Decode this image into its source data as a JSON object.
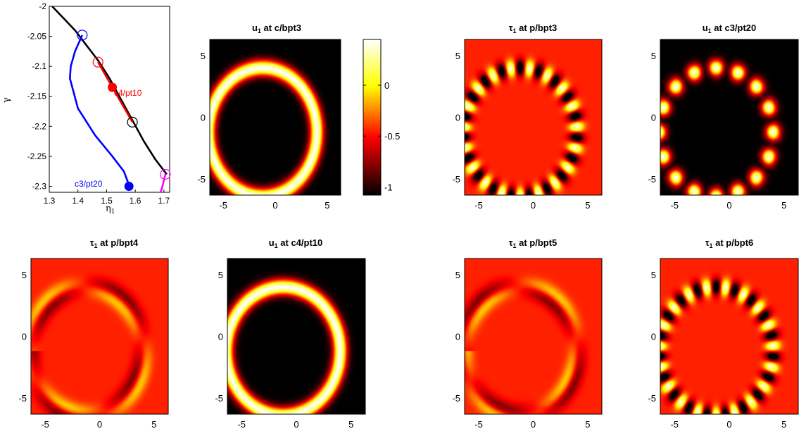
{
  "colors": {
    "hot_black": "#000000",
    "hot_red": "#ff0000",
    "hot_orange": "#ff7a00",
    "hot_yellow": "#ffff00",
    "hot_white": "#ffffff",
    "branch_main": "#000000",
    "branch_c3": "#0000ff",
    "branch_c4": "#ff0000",
    "branch_magenta": "#ff00ff"
  },
  "chart_data": [
    {
      "id": "diagram",
      "type": "line",
      "title": "",
      "xlabel": "η1",
      "xlabel_main": "η",
      "xlabel_sub": "1",
      "ylabel": "γ",
      "xlim": [
        1.3,
        1.72
      ],
      "ylim": [
        -2.31,
        -2.0
      ],
      "xticks": [
        "1.3",
        "1.4",
        "1.5",
        "1.6",
        "1.7"
      ],
      "xtick_values": [
        1.3,
        1.4,
        1.5,
        1.6,
        1.7
      ],
      "yticks": [
        "-2",
        "-2.05",
        "-2.1",
        "-2.15",
        "-2.2",
        "-2.25",
        "-2.3"
      ],
      "ytick_values": [
        -2.0,
        -2.05,
        -2.1,
        -2.15,
        -2.2,
        -2.25,
        -2.3
      ],
      "series": [
        {
          "color": "#000000",
          "x": [
            1.31,
            1.35,
            1.39,
            1.43,
            1.47,
            1.51,
            1.55,
            1.59,
            1.63,
            1.67,
            1.71
          ],
          "y": [
            -2.0,
            -2.02,
            -2.04,
            -2.065,
            -2.09,
            -2.12,
            -2.155,
            -2.19,
            -2.225,
            -2.255,
            -2.28
          ]
        },
        {
          "color": "#0000ff",
          "x": [
            1.415,
            1.39,
            1.375,
            1.372,
            1.4,
            1.46,
            1.52,
            1.56,
            1.58
          ],
          "y": [
            -2.048,
            -2.075,
            -2.1,
            -2.12,
            -2.17,
            -2.215,
            -2.25,
            -2.275,
            -2.3
          ]
        },
        {
          "color": "#ff0000",
          "x": [
            1.47,
            1.52,
            1.59
          ],
          "y": [
            -2.093,
            -2.135,
            -2.193
          ]
        },
        {
          "color": "#ff00ff",
          "x": [
            1.705,
            1.695,
            1.685
          ],
          "y": [
            -2.28,
            -2.3,
            -2.315
          ]
        }
      ],
      "markers": [
        {
          "x": 1.415,
          "y": -2.048,
          "color": "#0000ff",
          "filled": false
        },
        {
          "x": 1.47,
          "y": -2.093,
          "color": "#ff0000",
          "filled": false
        },
        {
          "x": 1.59,
          "y": -2.193,
          "color": "#000000",
          "filled": false
        },
        {
          "x": 1.705,
          "y": -2.28,
          "color": "#ff00ff",
          "filled": false
        },
        {
          "x": 1.52,
          "y": -2.135,
          "color": "#ff0000",
          "filled": true
        },
        {
          "x": 1.578,
          "y": -2.3,
          "color": "#0000ff",
          "filled": true
        }
      ],
      "annotations": [
        {
          "text": "c4/pt10",
          "x": 1.53,
          "y": -2.116,
          "color": "#ff0000"
        },
        {
          "text": "c3/pt20",
          "x": 1.425,
          "y": -2.293,
          "color": "#0000ff"
        }
      ]
    },
    {
      "id": "p1",
      "type": "heatmap",
      "title": "u1 at c/bpt3",
      "title_main": "u",
      "title_sub": "1",
      "title_rest": " at c/bpt3",
      "pattern": "ring",
      "xticks": [
        "-5",
        "0",
        "5"
      ],
      "yticks": [
        "5",
        "0",
        "-5"
      ],
      "xlim": [
        -6.3,
        6.3
      ],
      "ylim": [
        -6.3,
        6.3
      ]
    },
    {
      "id": "colorbar",
      "type": "heatmap",
      "title": "",
      "ticks": [
        "0",
        "-0.5",
        "-1"
      ],
      "tick_values": [
        0,
        -0.5,
        -1
      ],
      "range": [
        -1.08,
        0.45
      ]
    },
    {
      "id": "p2",
      "type": "heatmap",
      "title": "τ1 at p/bpt3",
      "title_main": "τ",
      "title_sub": "1",
      "title_rest": " at p/bpt3",
      "pattern": "tau_modes",
      "xticks": [
        "-5",
        "0",
        "5"
      ],
      "yticks": [
        "5",
        "0",
        "-5"
      ],
      "xlim": [
        -6.3,
        6.3
      ],
      "ylim": [
        -6.3,
        6.3
      ]
    },
    {
      "id": "p3",
      "type": "heatmap",
      "title": "u1 at c3/pt20",
      "title_main": "u",
      "title_sub": "1",
      "title_rest": " at c3/pt20",
      "pattern": "ring_spots",
      "xticks": [
        "-5",
        "0",
        "5"
      ],
      "yticks": [
        "5",
        "0",
        "-5"
      ],
      "xlim": [
        -6.3,
        6.3
      ],
      "ylim": [
        -6.3,
        6.3
      ]
    },
    {
      "id": "p4",
      "type": "heatmap",
      "title": "τ1 at p/bpt4",
      "title_main": "τ",
      "title_sub": "1",
      "title_rest": " at p/bpt4",
      "pattern": "tau_dipole",
      "xticks": [
        "-5",
        "0",
        "5"
      ],
      "yticks": [
        "5",
        "0",
        "-5"
      ],
      "xlim": [
        -6.3,
        6.3
      ],
      "ylim": [
        -6.3,
        6.3
      ]
    },
    {
      "id": "p5",
      "type": "heatmap",
      "title": "u1 at c4/pt10",
      "title_main": "u",
      "title_sub": "1",
      "title_rest": " at c4/pt10",
      "pattern": "ring",
      "xticks": [
        "-5",
        "0",
        "5"
      ],
      "yticks": [
        "5",
        "0",
        "-5"
      ],
      "xlim": [
        -6.3,
        6.3
      ],
      "ylim": [
        -6.3,
        6.3
      ]
    },
    {
      "id": "p6",
      "type": "heatmap",
      "title": "τ1 at p/bpt5",
      "title_main": "τ",
      "title_sub": "1",
      "title_rest": " at p/bpt5",
      "pattern": "tau_dipole_rev",
      "xticks": [
        "-5",
        "0",
        "5"
      ],
      "yticks": [
        "5",
        "0",
        "-5"
      ],
      "xlim": [
        -6.3,
        6.3
      ],
      "ylim": [
        -6.3,
        6.3
      ]
    },
    {
      "id": "p7",
      "type": "heatmap",
      "title": "τ1 at p/bpt6",
      "title_main": "τ",
      "title_sub": "1",
      "title_rest": " at p/bpt6",
      "pattern": "tau_modes",
      "xticks": [
        "-5",
        "0",
        "5"
      ],
      "yticks": [
        "5",
        "0",
        "-5"
      ],
      "xlim": [
        -6.3,
        6.3
      ],
      "ylim": [
        -6.3,
        6.3
      ]
    }
  ]
}
